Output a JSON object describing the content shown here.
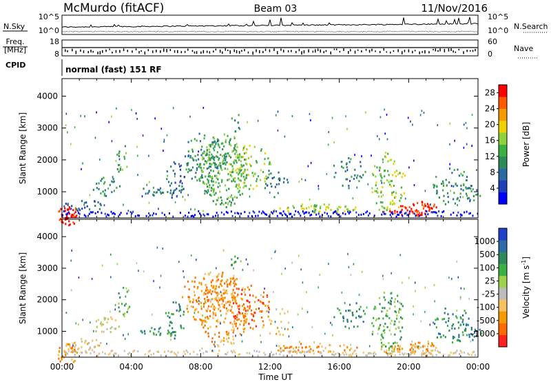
{
  "header": {
    "station": "McMurdo (fitACF)",
    "beam": "Beam 03",
    "date": "11/Nov/2016"
  },
  "top_panels": {
    "nsky_label": "N.Sky",
    "nsearch_label": "N.Search",
    "nsky_ticks": [
      "10^5",
      "10^0"
    ],
    "nsearch_ticks": [
      "10^5",
      "10^0"
    ],
    "freq_label": "Freq.",
    "freq_unit": "[MHz]",
    "freq_ticks": [
      "18",
      "8"
    ],
    "nave_label": "Nave",
    "nave_ticks": [
      "60",
      "0"
    ],
    "cpid_label": "CPID",
    "cpid_text": "normal (fast) 151 RF"
  },
  "chart_data": [
    {
      "type": "heatmap",
      "name": "power",
      "ylabel": "Slant Range [km]",
      "xlabel": "Time UT",
      "x_ticks": [
        "00:00",
        "04:00",
        "08:00",
        "12:00",
        "16:00",
        "20:00",
        "00:00"
      ],
      "x_range_hours": [
        0,
        24
      ],
      "y_ticks": [
        "1000",
        "2000",
        "3000",
        "4000"
      ],
      "ylim": [
        180,
        4550
      ],
      "colorbar": {
        "label": "Power [dB]",
        "ticks": [
          "4",
          "8",
          "12",
          "16",
          "20",
          "24",
          "28"
        ],
        "range": [
          0,
          30
        ],
        "colors": [
          "#0000ff",
          "#1f3fb8",
          "#2b6aa0",
          "#2e8a5a",
          "#3cb043",
          "#8fd13f",
          "#f0d000",
          "#f59a00",
          "#ff5a00",
          "#ff0000"
        ]
      }
    },
    {
      "type": "heatmap",
      "name": "velocity",
      "ylabel": "Slant Range [km]",
      "xlabel": "Time UT",
      "x_ticks": [
        "00:00",
        "04:00",
        "08:00",
        "12:00",
        "16:00",
        "20:00",
        "00:00"
      ],
      "x_range_hours": [
        0,
        24
      ],
      "y_ticks": [
        "1000",
        "2000",
        "3000",
        "4000"
      ],
      "ylim": [
        180,
        4550
      ],
      "colorbar": {
        "label": "Velocity [m s",
        "label_sup": "-1",
        "label_end": "]",
        "ticks": [
          "1000",
          "500",
          "100",
          "25",
          "-25",
          "-100",
          "-500",
          "-1000"
        ],
        "colors": [
          "#2040c8",
          "#2c6aa8",
          "#2e8a5a",
          "#3cb043",
          "#9ed24a",
          "#bcbcbc",
          "#f7c060",
          "#f59a00",
          "#ff6a00",
          "#ff2020"
        ]
      }
    }
  ],
  "x_axis_label": "Time UT"
}
